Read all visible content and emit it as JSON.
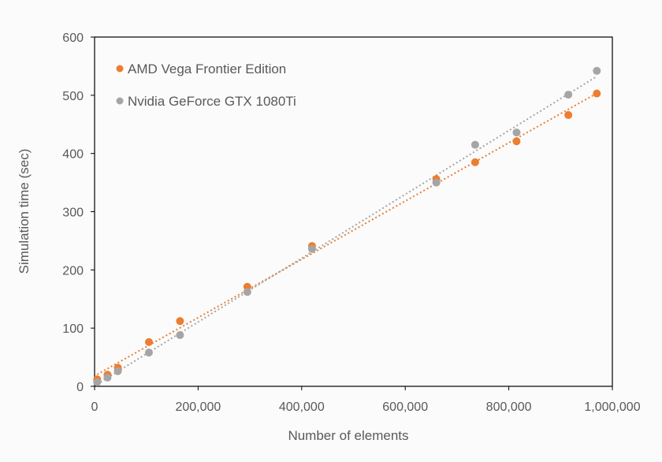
{
  "chart_data": {
    "type": "scatter",
    "title": "",
    "xlabel": "Number of elements",
    "ylabel": "Simulation time (sec)",
    "xlim": [
      0,
      1000000
    ],
    "ylim": [
      0,
      600
    ],
    "x_ticks": [
      0,
      200000,
      400000,
      600000,
      800000,
      1000000
    ],
    "x_tick_labels": [
      "0",
      "200,000",
      "400,000",
      "600,000",
      "800,000",
      "1,000,000"
    ],
    "y_ticks": [
      0,
      100,
      200,
      300,
      400,
      500,
      600
    ],
    "y_tick_labels": [
      "0",
      "100",
      "200",
      "300",
      "400",
      "500",
      "600"
    ],
    "grid": false,
    "legend_position": "top-left",
    "trendline": "linear, dotted",
    "series": [
      {
        "name": "AMD Vega Frontier Edition",
        "color": "#ed7d31",
        "points": [
          {
            "x": 5000,
            "y": 12
          },
          {
            "x": 25000,
            "y": 20
          },
          {
            "x": 45000,
            "y": 32
          },
          {
            "x": 105000,
            "y": 76
          },
          {
            "x": 165000,
            "y": 112
          },
          {
            "x": 295000,
            "y": 171
          },
          {
            "x": 420000,
            "y": 241
          },
          {
            "x": 660000,
            "y": 356
          },
          {
            "x": 735000,
            "y": 385
          },
          {
            "x": 815000,
            "y": 421
          },
          {
            "x": 915000,
            "y": 466
          },
          {
            "x": 970000,
            "y": 503
          }
        ]
      },
      {
        "name": "Nvidia GeForce GTX 1080Ti",
        "color": "#a5a5a5",
        "points": [
          {
            "x": 5000,
            "y": 7
          },
          {
            "x": 25000,
            "y": 15
          },
          {
            "x": 45000,
            "y": 26
          },
          {
            "x": 105000,
            "y": 58
          },
          {
            "x": 165000,
            "y": 88
          },
          {
            "x": 295000,
            "y": 162
          },
          {
            "x": 420000,
            "y": 236
          },
          {
            "x": 660000,
            "y": 350
          },
          {
            "x": 735000,
            "y": 415
          },
          {
            "x": 815000,
            "y": 436
          },
          {
            "x": 915000,
            "y": 501
          },
          {
            "x": 970000,
            "y": 542
          }
        ]
      }
    ]
  }
}
